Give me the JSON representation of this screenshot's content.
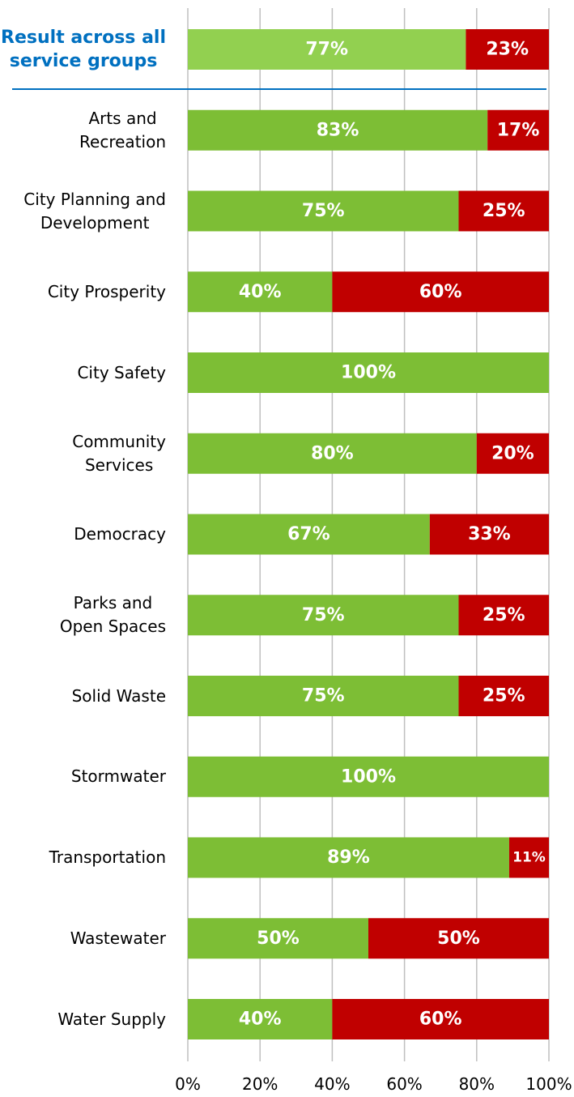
{
  "chart_data": {
    "type": "stacked-barh",
    "categories": [
      "Result across all\nservice groups",
      "Arts and\nRecreation",
      "City Planning and\nDevelopment",
      "City Prosperity",
      "City Safety",
      "Community\nServices",
      "Democracy",
      "Parks and\nOpen Spaces",
      "Solid Waste",
      "Stormwater",
      "Transportation",
      "Wastewater",
      "Water Supply"
    ],
    "series": [
      {
        "color": "#7dbe35",
        "colors": [
          "#92d050",
          "#7dbe35",
          "#7dbe35",
          "#7dbe35",
          "#7dbe35",
          "#7dbe35",
          "#7dbe35",
          "#7dbe35",
          "#7dbe35",
          "#7dbe35",
          "#7dbe35",
          "#7dbe35",
          "#7dbe35"
        ],
        "values": [
          77,
          83,
          75,
          40,
          100,
          80,
          67,
          75,
          75,
          100,
          89,
          50,
          40
        ],
        "value_labels": [
          "77%",
          "83%",
          "75%",
          "40%",
          "100%",
          "80%",
          "67%",
          "75%",
          "75%",
          "100%",
          "89%",
          "50%",
          "40%"
        ]
      },
      {
        "color": "#c00000",
        "values": [
          23,
          17,
          25,
          60,
          0,
          20,
          33,
          25,
          25,
          0,
          11,
          50,
          60
        ],
        "value_labels": [
          "23%",
          "17%",
          "25%",
          "60%",
          null,
          "20%",
          "33%",
          "25%",
          "25%",
          null,
          "11%",
          "50%",
          "60%"
        ]
      }
    ],
    "xlim": [
      0,
      100
    ],
    "xticks": [
      {
        "value": 0,
        "label": "0%"
      },
      {
        "value": 20,
        "label": "20%"
      },
      {
        "value": 40,
        "label": "40%"
      },
      {
        "value": 60,
        "label": "60%"
      },
      {
        "value": 80,
        "label": "80%"
      },
      {
        "value": 100,
        "label": "100%"
      }
    ],
    "grid": true
  }
}
